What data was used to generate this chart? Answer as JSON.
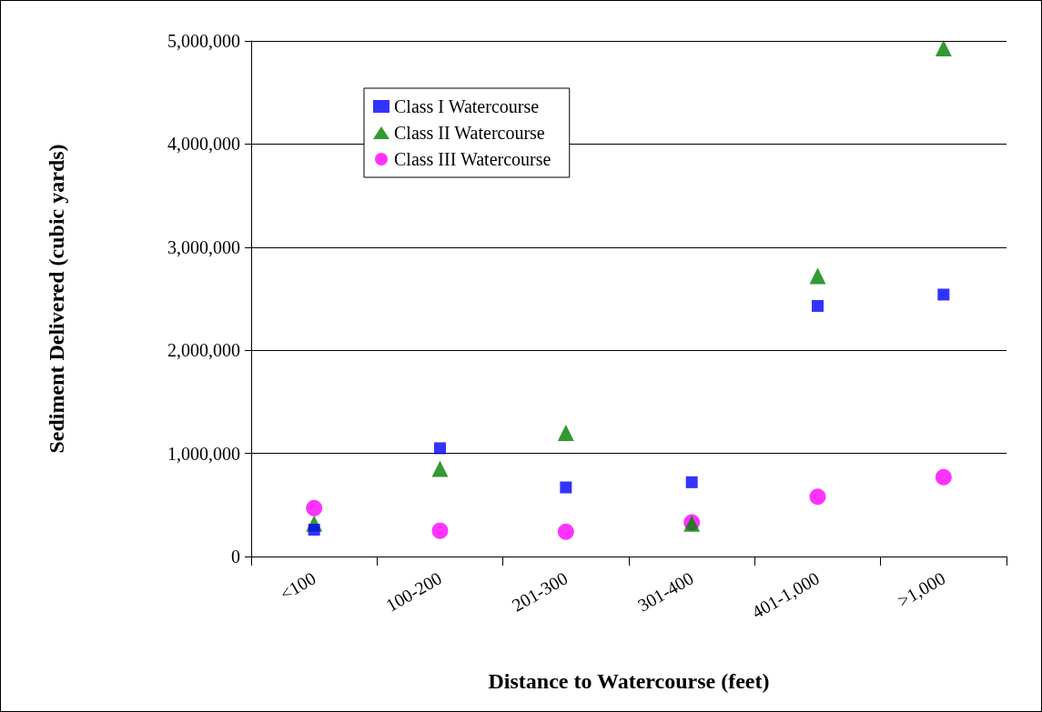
{
  "chart_data": {
    "type": "scatter",
    "xlabel": "Distance to Watercourse (feet)",
    "ylabel": "Sediment Delivered (cubic yards)",
    "categories": [
      "<100",
      "100-200",
      "201-300",
      "301-400",
      "401-1,000",
      ">1,000"
    ],
    "series": [
      {
        "name": "Class I Watercourse",
        "color": "#0000ff",
        "marker": "square",
        "values": [
          260000,
          1050000,
          670000,
          720000,
          2430000,
          2540000
        ]
      },
      {
        "name": "Class II Watercourse",
        "color": "#008000",
        "marker": "triangle",
        "values": [
          320000,
          850000,
          1200000,
          320000,
          2720000,
          4930000
        ]
      },
      {
        "name": "Class III Watercourse",
        "color": "#ff00ff",
        "marker": "circle",
        "values": [
          470000,
          250000,
          240000,
          330000,
          580000,
          770000
        ]
      }
    ],
    "ylim": [
      0,
      5000000
    ],
    "yticks": [
      0,
      {
        "value": 1000000,
        "label": "1,000,000"
      },
      {
        "value": 2000000,
        "label": "2,000,000"
      },
      {
        "value": 3000000,
        "label": "3,000,000"
      },
      {
        "value": 4000000,
        "label": "4,000,000"
      },
      {
        "value": 5000000,
        "label": "5,000,000"
      }
    ],
    "grid": "y",
    "legend": "top left"
  }
}
